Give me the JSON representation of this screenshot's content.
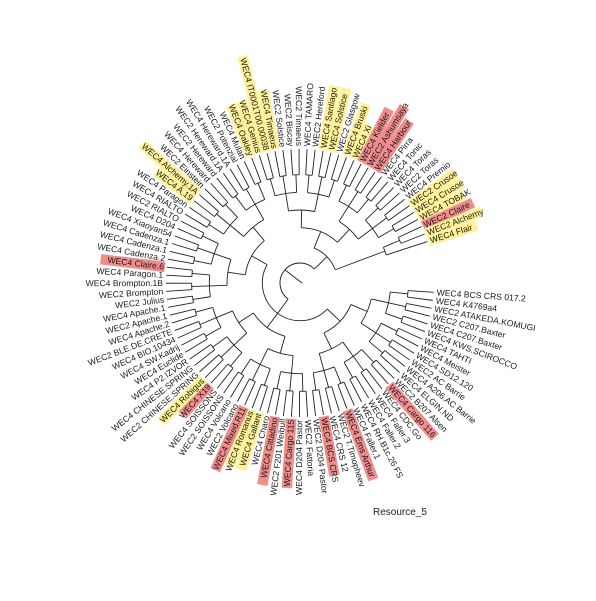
{
  "caption": "Resource_5",
  "colors": {
    "red": "#f08c8c",
    "yellow": "#fff197",
    "branch": "#222222"
  },
  "tips": [
    {
      "label": "WEC4 BCS CRS 017.2",
      "hl": "none"
    },
    {
      "label": "WEC4 K4769a4",
      "hl": "none"
    },
    {
      "label": "WEC2 ATAKEDA.KOMUGI",
      "hl": "none"
    },
    {
      "label": "WEC2 C207.Baxter",
      "hl": "none"
    },
    {
      "label": "WEC4 C207.Baxter",
      "hl": "none"
    },
    {
      "label": "WEC4 KWS.SCIROCCO",
      "hl": "none"
    },
    {
      "label": "WEC4 TAHTI",
      "hl": "none"
    },
    {
      "label": "WEC4 Meister",
      "hl": "none"
    },
    {
      "label": "WEC4 SD12.120",
      "hl": "none"
    },
    {
      "label": "WEC2 AC Barrie",
      "hl": "none"
    },
    {
      "label": "WEC4 A206.AC Barrie",
      "hl": "none"
    },
    {
      "label": "WEC4 ELGIN.ND",
      "hl": "none"
    },
    {
      "label": "WEC2 B207 Alsen",
      "hl": "none"
    },
    {
      "label": "WEC4 Cargo 116",
      "hl": "red"
    },
    {
      "label": "WEC4 CDC.Go",
      "hl": "none"
    },
    {
      "label": "WEC4 Faller.3",
      "hl": "none"
    },
    {
      "label": "WEC4 Faller.2",
      "hl": "none"
    },
    {
      "label": "WEC4 RH.B1c.26 FS",
      "hl": "none"
    },
    {
      "label": "WEC4 Faller.1",
      "hl": "none"
    },
    {
      "label": "WEC4 Ems Arthur",
      "hl": "red"
    },
    {
      "label": "WEC2 T.Timopheev",
      "hl": "none"
    },
    {
      "label": "WEC4 CRS 12",
      "hl": "none"
    },
    {
      "label": "WEC4 BCS CRS",
      "hl": "red"
    },
    {
      "label": "WEC2 D204 Pastor",
      "hl": "none"
    },
    {
      "label": "WEC2 Fattoria",
      "hl": "none"
    },
    {
      "label": "WEC4 D204 Pastor",
      "hl": "none"
    },
    {
      "label": "WEC4 Cargo 115",
      "hl": "red"
    },
    {
      "label": "WEC2 F201 Weibull",
      "hl": "none"
    },
    {
      "label": "WEC4 Cittadino",
      "hl": "red"
    },
    {
      "label": "WEC4 Charo",
      "hl": "none"
    },
    {
      "label": "WEC4 Gallant",
      "hl": "yellow"
    },
    {
      "label": "WEC4 Romanus",
      "hl": "yellow"
    },
    {
      "label": "WEC4 Mixed.R11",
      "hl": "red"
    },
    {
      "label": "WEC2 Volcano",
      "hl": "none"
    },
    {
      "label": "WEC4 Volcano",
      "hl": "none"
    },
    {
      "label": "WEC2 SOISSONS",
      "hl": "none"
    },
    {
      "label": "WEC4 SOISSONS",
      "hl": "none"
    },
    {
      "label": "WEC4 X19",
      "hl": "red"
    },
    {
      "label": "WEC4 Robigus",
      "hl": "yellow"
    },
    {
      "label": "WEC2 CHINESE.SPRING",
      "hl": "none"
    },
    {
      "label": "WEC4 CHINESE.SPRING",
      "hl": "none"
    },
    {
      "label": "WEC4 P2.IZVOR",
      "hl": "none"
    },
    {
      "label": "WEC4 Euclide",
      "hl": "none"
    },
    {
      "label": "WEC4 SW.Kadrij",
      "hl": "none"
    },
    {
      "label": "WEC4 BIO.10434",
      "hl": "none"
    },
    {
      "label": "WEC2 BLE.DE.CRETE",
      "hl": "none"
    },
    {
      "label": "WEC4 Apache.2",
      "hl": "none"
    },
    {
      "label": "WEC2 Apache.1",
      "hl": "none"
    },
    {
      "label": "WEC4 Apache.1",
      "hl": "none"
    },
    {
      "label": "WEC2 Julius",
      "hl": "none"
    },
    {
      "label": "WEC2 Brompton",
      "hl": "none"
    },
    {
      "label": "WEC4 Brompton.1B",
      "hl": "none"
    },
    {
      "label": "WEC4 Paragon.1",
      "hl": "none"
    },
    {
      "label": "WEC4 Claire.6",
      "hl": "red"
    },
    {
      "label": "WEC4 Cadenza.2",
      "hl": "none"
    },
    {
      "label": "WEC4 Cadenza.1",
      "hl": "none"
    },
    {
      "label": "WEC4 Cadenza.1",
      "hl": "none"
    },
    {
      "label": "WEC4 Xiaoyan54",
      "hl": "none"
    },
    {
      "label": "WEC4 D204",
      "hl": "none"
    },
    {
      "label": "WEC2 RIALTO",
      "hl": "none"
    },
    {
      "label": "WEC4 RIALTO",
      "hl": "none"
    },
    {
      "label": "WEC4 Paragon",
      "hl": "none"
    },
    {
      "label": "WEC4 A.19",
      "hl": "yellow"
    },
    {
      "label": "WEC4 Alchemy.1A",
      "hl": "yellow"
    },
    {
      "label": "WEC2 Einstein",
      "hl": "none"
    },
    {
      "label": "WEC4 Hereward",
      "hl": "none"
    },
    {
      "label": "WEC2 Hereward",
      "hl": "none"
    },
    {
      "label": "WEC2 Hereward.1A",
      "hl": "none"
    },
    {
      "label": "WEC4 Hereward.1A",
      "hl": "none"
    },
    {
      "label": "WEC2 Potenzial",
      "hl": "none"
    },
    {
      "label": "WEC4 Mulan",
      "hl": "none"
    },
    {
      "label": "WEC4 Oakley",
      "hl": "yellow"
    },
    {
      "label": "WEC4 Genius",
      "hl": "yellow"
    },
    {
      "label": "WEC4 IT0001T00.00038",
      "hl": "yellow"
    },
    {
      "label": "WEC4 Timaeus",
      "hl": "yellow"
    },
    {
      "label": "WEC2 Solstice",
      "hl": "none"
    },
    {
      "label": "WEC2 Biscay",
      "hl": "none"
    },
    {
      "label": "WEC2 Timaeus",
      "hl": "none"
    },
    {
      "label": "WEC4 TAMARO",
      "hl": "none"
    },
    {
      "label": "WEC2 Hereford",
      "hl": "none"
    },
    {
      "label": "WEC4 Santiago",
      "hl": "yellow"
    },
    {
      "label": "WEC4 Solstice",
      "hl": "yellow"
    },
    {
      "label": "WEC2 Glasgow",
      "hl": "none"
    },
    {
      "label": "WEC4 Bruski",
      "hl": "yellow"
    },
    {
      "label": "WEC4 Xi",
      "hl": "yellow"
    },
    {
      "label": "WEC4 Kielder",
      "hl": "red"
    },
    {
      "label": "WEC2 Ashumsaya",
      "hl": "red"
    },
    {
      "label": "WEC4 Harbour",
      "hl": "red"
    },
    {
      "label": "WEC4 Pirra",
      "hl": "none"
    },
    {
      "label": "WEC4 Tonic",
      "hl": "none"
    },
    {
      "label": "WEC4 Toras",
      "hl": "none"
    },
    {
      "label": "WEC2 Toras",
      "hl": "none"
    },
    {
      "label": "WEC4 Premio",
      "hl": "none"
    },
    {
      "label": "WEC2 Crusoe",
      "hl": "yellow"
    },
    {
      "label": "WEC4 Crusoe",
      "hl": "yellow"
    },
    {
      "label": "WEC4 TOBAK",
      "hl": "yellow"
    },
    {
      "label": "WEC2 Claire",
      "hl": "red"
    },
    {
      "label": "WEC2 Alchemy",
      "hl": "yellow"
    },
    {
      "label": "WEC4 Flair",
      "hl": "yellow"
    }
  ]
}
